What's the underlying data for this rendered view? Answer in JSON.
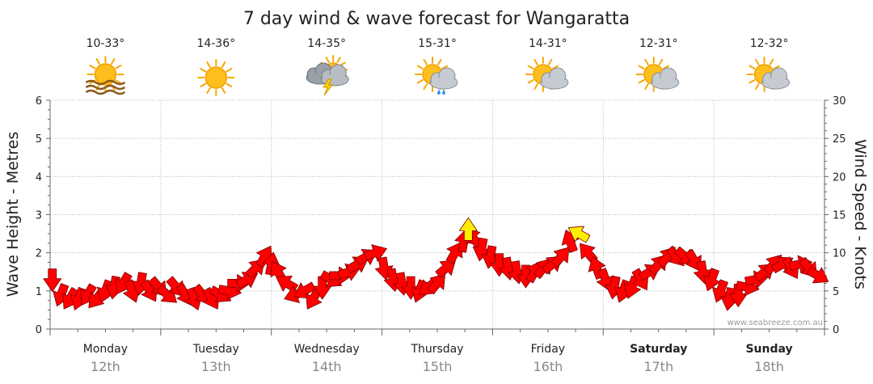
{
  "title": "7 day wind & wave forecast for Wangaratta",
  "watermark": "www.seabreeze.com.au",
  "colors": {
    "arrow": "#ff0000",
    "arrow_highlight": "#ffee00",
    "arrow_stroke": "#7a0000"
  },
  "days": [
    {
      "name": "Monday",
      "date": "12th",
      "temp": "10-33°",
      "icon": "sun-haze-icon",
      "bold": false
    },
    {
      "name": "Tuesday",
      "date": "13th",
      "temp": "14-36°",
      "icon": "sun-icon",
      "bold": false
    },
    {
      "name": "Wednesday",
      "date": "14th",
      "temp": "14-35°",
      "icon": "thunderstorm-icon",
      "bold": false
    },
    {
      "name": "Thursday",
      "date": "15th",
      "temp": "15-31°",
      "icon": "sun-cloud-rain-icon",
      "bold": false
    },
    {
      "name": "Friday",
      "date": "16th",
      "temp": "14-31°",
      "icon": "sun-cloud-icon",
      "bold": false
    },
    {
      "name": "Saturday",
      "date": "17th",
      "temp": "12-31°",
      "icon": "sun-cloud-icon",
      "bold": true
    },
    {
      "name": "Sunday",
      "date": "18th",
      "temp": "12-32°",
      "icon": "sun-cloud-icon",
      "bold": true
    }
  ],
  "chart_data": {
    "type": "line",
    "title": "7 day wind & wave forecast for Wangaratta",
    "y_left": {
      "label": "Wave Height - Metres",
      "range": [
        0,
        6
      ],
      "ticks": [
        0,
        1,
        2,
        3,
        4,
        5,
        6
      ]
    },
    "y_right": {
      "label": "Wind Speed - Knots",
      "range": [
        0,
        30
      ],
      "ticks": [
        0,
        5,
        10,
        15,
        20,
        25,
        30
      ]
    },
    "x": {
      "unit": "days",
      "range": [
        0,
        7
      ],
      "categories": [
        "Monday 12th",
        "Tuesday 13th",
        "Wednesday 14th",
        "Thursday 15th",
        "Friday 16th",
        "Saturday 17th",
        "Sunday 18th"
      ]
    },
    "grid": true,
    "series": [
      {
        "name": "",
        "y_axis": "right",
        "points": [
          {
            "x": 0.02,
            "knots": 6.5,
            "dir": 180
          },
          {
            "x": 0.1,
            "knots": 4.5,
            "dir": 200
          },
          {
            "x": 0.18,
            "knots": 4.0,
            "dir": 210
          },
          {
            "x": 0.26,
            "knots": 4.0,
            "dir": 200
          },
          {
            "x": 0.34,
            "knots": 4.5,
            "dir": 210
          },
          {
            "x": 0.42,
            "knots": 4.0,
            "dir": 220
          },
          {
            "x": 0.5,
            "knots": 5.0,
            "dir": 200
          },
          {
            "x": 0.58,
            "knots": 5.5,
            "dir": 190
          },
          {
            "x": 0.66,
            "knots": 6.0,
            "dir": 210
          },
          {
            "x": 0.74,
            "knots": 5.0,
            "dir": 160
          },
          {
            "x": 0.82,
            "knots": 6.0,
            "dir": 190
          },
          {
            "x": 0.9,
            "knots": 5.0,
            "dir": 150
          },
          {
            "x": 0.98,
            "knots": 5.5,
            "dir": 140
          },
          {
            "x": 1.06,
            "knots": 4.5,
            "dir": 130
          },
          {
            "x": 1.14,
            "knots": 5.5,
            "dir": 140
          },
          {
            "x": 1.22,
            "knots": 4.5,
            "dir": 150
          },
          {
            "x": 1.3,
            "knots": 4.0,
            "dir": 160
          },
          {
            "x": 1.38,
            "knots": 4.5,
            "dir": 140
          },
          {
            "x": 1.46,
            "knots": 4.0,
            "dir": 150
          },
          {
            "x": 1.54,
            "knots": 4.5,
            "dir": 120
          },
          {
            "x": 1.62,
            "knots": 5.0,
            "dir": 100
          },
          {
            "x": 1.7,
            "knots": 6.0,
            "dir": 90
          },
          {
            "x": 1.78,
            "knots": 6.5,
            "dir": 60
          },
          {
            "x": 1.86,
            "knots": 8.0,
            "dir": 45
          },
          {
            "x": 1.94,
            "knots": 9.5,
            "dir": 30
          },
          {
            "x": 2.0,
            "knots": 8.5,
            "dir": 10
          },
          {
            "x": 2.06,
            "knots": 7.5,
            "dir": 330
          },
          {
            "x": 2.14,
            "knots": 6.0,
            "dir": 300
          },
          {
            "x": 2.22,
            "knots": 4.5,
            "dir": 250
          },
          {
            "x": 2.3,
            "knots": 5.0,
            "dir": 240
          },
          {
            "x": 2.38,
            "knots": 4.0,
            "dir": 210
          },
          {
            "x": 2.46,
            "knots": 5.5,
            "dir": 180
          },
          {
            "x": 2.54,
            "knots": 6.5,
            "dir": 120
          },
          {
            "x": 2.62,
            "knots": 7.0,
            "dir": 90
          },
          {
            "x": 2.7,
            "knots": 7.5,
            "dir": 70
          },
          {
            "x": 2.78,
            "knots": 8.5,
            "dir": 60
          },
          {
            "x": 2.86,
            "knots": 9.5,
            "dir": 60
          },
          {
            "x": 2.94,
            "knots": 10.0,
            "dir": 70
          },
          {
            "x": 3.02,
            "knots": 8.0,
            "dir": 170
          },
          {
            "x": 3.1,
            "knots": 6.5,
            "dir": 170
          },
          {
            "x": 3.18,
            "knots": 6.0,
            "dir": 170
          },
          {
            "x": 3.26,
            "knots": 5.5,
            "dir": 180
          },
          {
            "x": 3.34,
            "knots": 5.0,
            "dir": 200
          },
          {
            "x": 3.42,
            "knots": 5.5,
            "dir": 230
          },
          {
            "x": 3.5,
            "knots": 6.0,
            "dir": 40
          },
          {
            "x": 3.58,
            "knots": 8.0,
            "dir": 50
          },
          {
            "x": 3.66,
            "knots": 10.0,
            "dir": 30
          },
          {
            "x": 3.74,
            "knots": 11.5,
            "dir": 10
          },
          {
            "x": 3.78,
            "knots": 13.0,
            "dir": 0
          },
          {
            "x": 3.82,
            "knots": 12.0,
            "dir": 320
          },
          {
            "x": 3.9,
            "knots": 10.5,
            "dir": 190
          },
          {
            "x": 3.98,
            "knots": 9.5,
            "dir": 190
          },
          {
            "x": 4.06,
            "knots": 8.5,
            "dir": 180
          },
          {
            "x": 4.14,
            "knots": 8.0,
            "dir": 170
          },
          {
            "x": 4.22,
            "knots": 7.5,
            "dir": 170
          },
          {
            "x": 4.3,
            "knots": 7.0,
            "dir": 180
          },
          {
            "x": 4.38,
            "knots": 7.5,
            "dir": 30
          },
          {
            "x": 4.46,
            "knots": 8.0,
            "dir": 40
          },
          {
            "x": 4.54,
            "knots": 8.5,
            "dir": 50
          },
          {
            "x": 4.62,
            "knots": 9.5,
            "dir": 40
          },
          {
            "x": 4.7,
            "knots": 11.5,
            "dir": 340
          },
          {
            "x": 4.78,
            "knots": 12.5,
            "dir": 300
          },
          {
            "x": 4.86,
            "knots": 10.0,
            "dir": 320
          },
          {
            "x": 4.94,
            "knots": 8.0,
            "dir": 340
          },
          {
            "x": 5.02,
            "knots": 6.5,
            "dir": 160
          },
          {
            "x": 5.1,
            "knots": 5.5,
            "dir": 190
          },
          {
            "x": 5.18,
            "knots": 5.0,
            "dir": 200
          },
          {
            "x": 5.26,
            "knots": 5.5,
            "dir": 200
          },
          {
            "x": 5.34,
            "knots": 6.5,
            "dir": 150
          },
          {
            "x": 5.42,
            "knots": 7.5,
            "dir": 60
          },
          {
            "x": 5.5,
            "knots": 8.5,
            "dir": 40
          },
          {
            "x": 5.58,
            "knots": 9.5,
            "dir": 40
          },
          {
            "x": 5.66,
            "knots": 9.5,
            "dir": 140
          },
          {
            "x": 5.74,
            "knots": 9.5,
            "dir": 130
          },
          {
            "x": 5.82,
            "knots": 9.0,
            "dir": 150
          },
          {
            "x": 5.9,
            "knots": 7.5,
            "dir": 170
          },
          {
            "x": 5.98,
            "knots": 6.5,
            "dir": 200
          },
          {
            "x": 6.06,
            "knots": 5.0,
            "dir": 200
          },
          {
            "x": 6.14,
            "knots": 4.0,
            "dir": 190
          },
          {
            "x": 6.22,
            "knots": 4.5,
            "dir": 180
          },
          {
            "x": 6.3,
            "knots": 5.5,
            "dir": 100
          },
          {
            "x": 6.38,
            "knots": 6.5,
            "dir": 80
          },
          {
            "x": 6.46,
            "knots": 7.5,
            "dir": 50
          },
          {
            "x": 6.54,
            "knots": 8.5,
            "dir": 40
          },
          {
            "x": 6.62,
            "knots": 8.5,
            "dir": 60
          },
          {
            "x": 6.7,
            "knots": 8.0,
            "dir": 150
          },
          {
            "x": 6.78,
            "knots": 8.5,
            "dir": 80
          },
          {
            "x": 6.86,
            "knots": 8.0,
            "dir": 140
          },
          {
            "x": 6.94,
            "knots": 7.0,
            "dir": 120
          }
        ]
      }
    ],
    "highlights": [
      {
        "x": 3.78,
        "knots": 13.0,
        "dir": 0
      },
      {
        "x": 4.78,
        "knots": 12.5,
        "dir": 300
      }
    ]
  }
}
